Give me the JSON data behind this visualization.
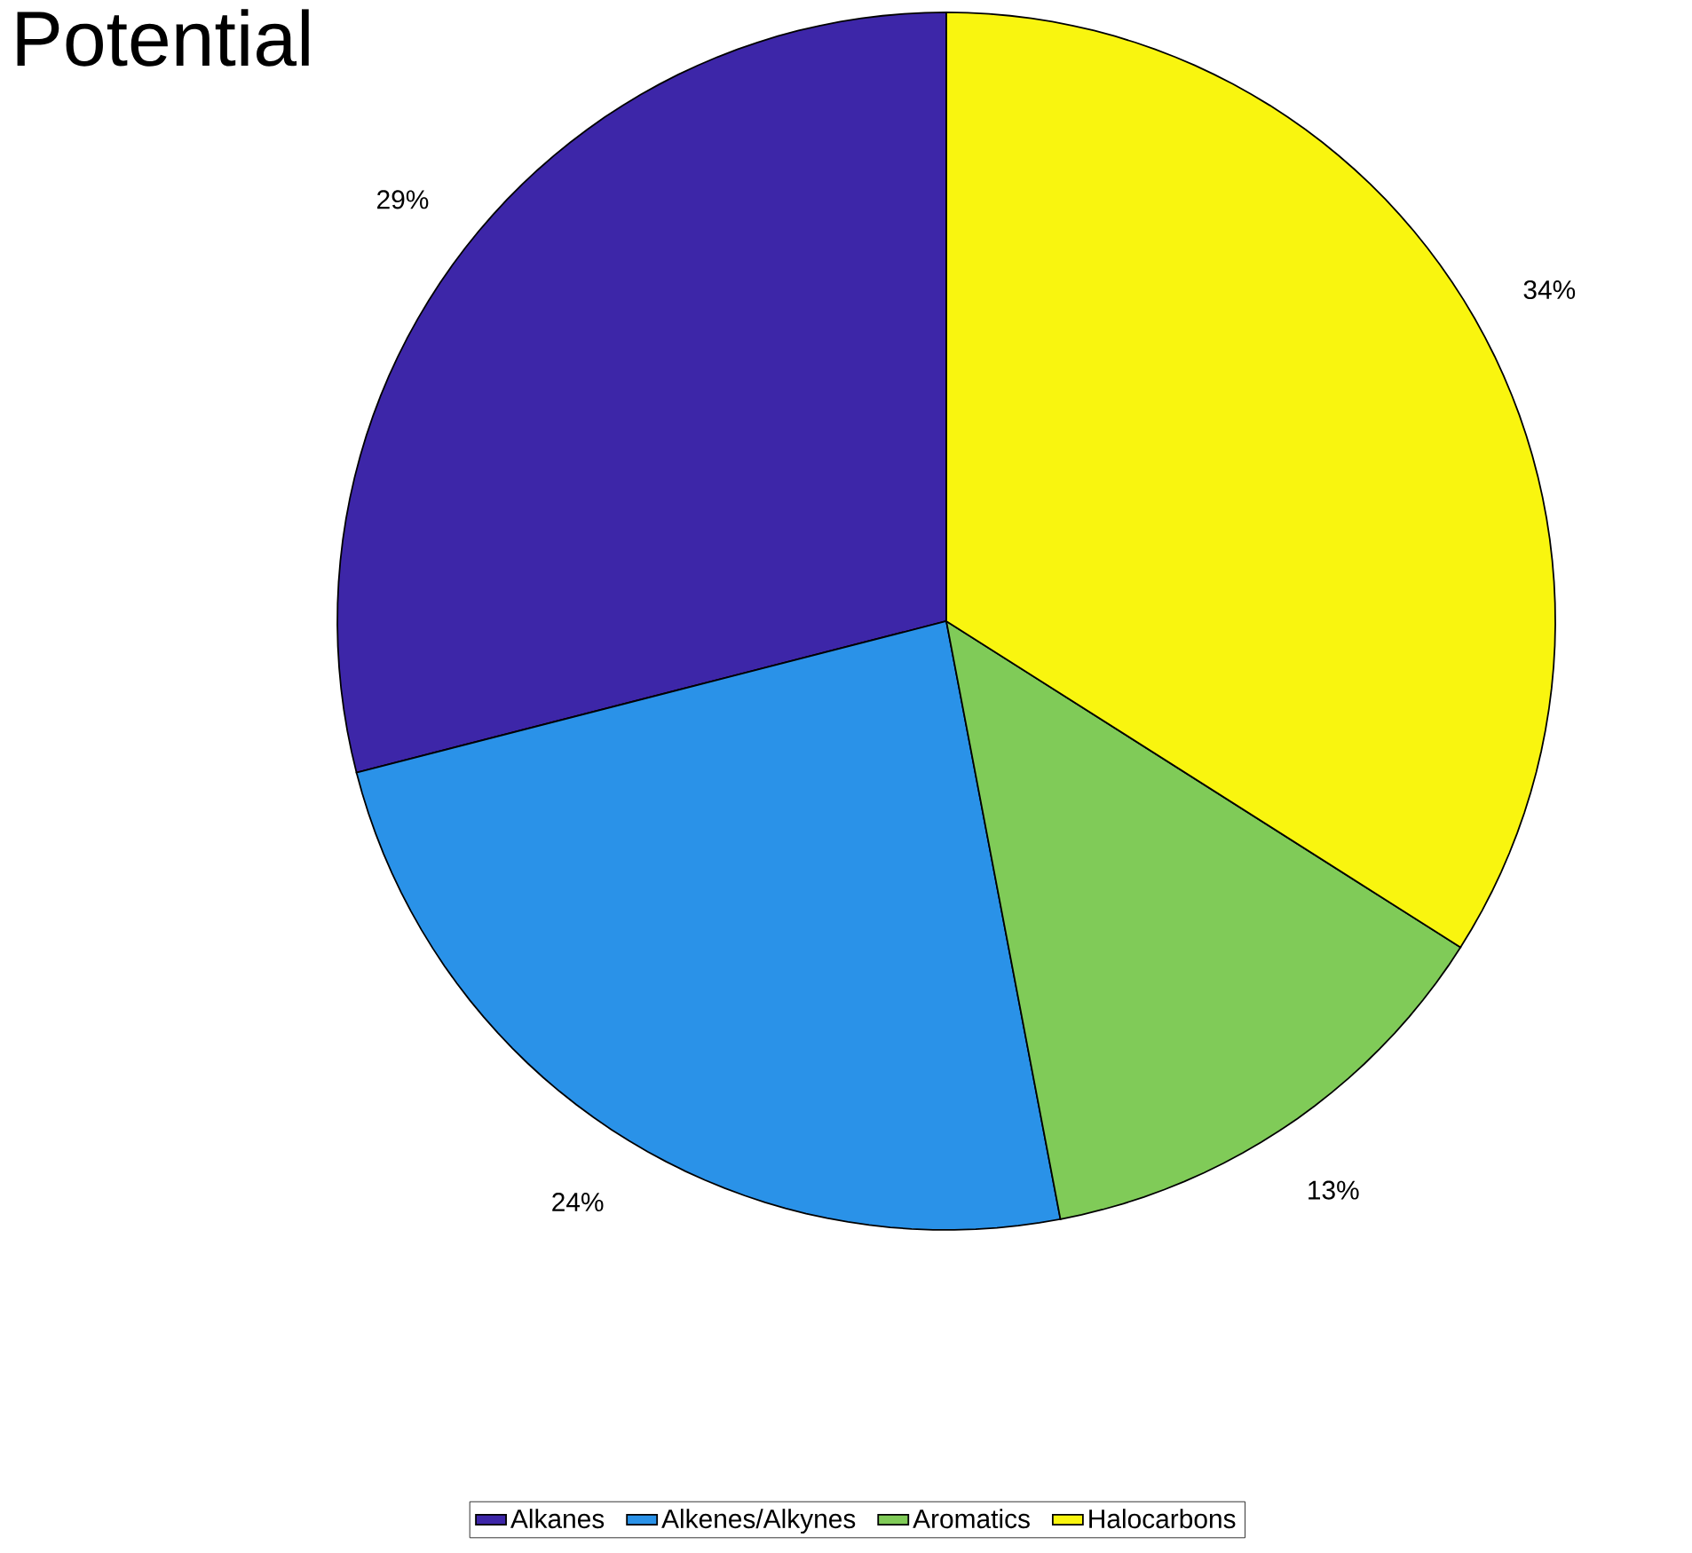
{
  "chart_data": {
    "type": "pie",
    "title": "Potential",
    "categories": [
      "Alkanes",
      "Alkenes/Alkynes",
      "Aromatics",
      "Halocarbons"
    ],
    "values": [
      29,
      24,
      13,
      34
    ],
    "value_labels": [
      "29%",
      "24%",
      "13%",
      "34%"
    ],
    "colors": [
      "#3d26a8",
      "#2a92e8",
      "#80cb58",
      "#f9f50f"
    ],
    "legend": "bottom"
  }
}
